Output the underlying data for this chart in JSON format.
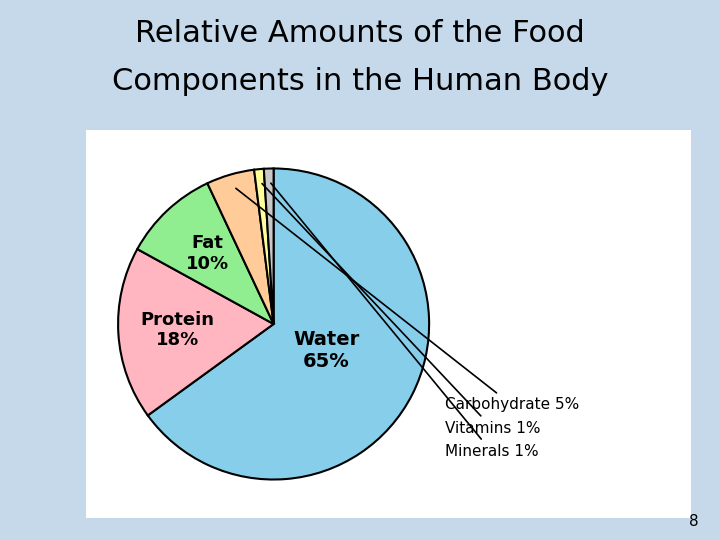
{
  "title_line1": "Relative Amounts of the Food",
  "title_line2": "Components in the Human Body",
  "title_fontsize": 22,
  "title_fontweight": "normal",
  "background_color": "#c5d9ea",
  "pie_bg_color": "#ffffff",
  "slices": [
    {
      "label": "Water",
      "pct": 65,
      "color": "#87ceeb",
      "text_inside": true,
      "fontsize": 14
    },
    {
      "label": "Protein",
      "pct": 18,
      "color": "#ffb6c1",
      "text_inside": true,
      "fontsize": 13
    },
    {
      "label": "Fat",
      "pct": 10,
      "color": "#90ee90",
      "text_inside": true,
      "fontsize": 13
    },
    {
      "label": "Carbohydrate",
      "pct": 5,
      "color": "#ffcc99",
      "text_inside": false,
      "fontsize": 11
    },
    {
      "label": "Vitamins",
      "pct": 1,
      "color": "#ffff99",
      "text_inside": false,
      "fontsize": 11
    },
    {
      "label": "Minerals",
      "pct": 1,
      "color": "#c8c8c8",
      "text_inside": false,
      "fontsize": 11
    }
  ],
  "start_angle": 90,
  "edge_color": "#000000",
  "edge_linewidth": 1.5,
  "page_number": "8",
  "inside_label_offsets": {
    "Water": 0.38,
    "Protein": 0.62,
    "Fat": 0.62
  }
}
